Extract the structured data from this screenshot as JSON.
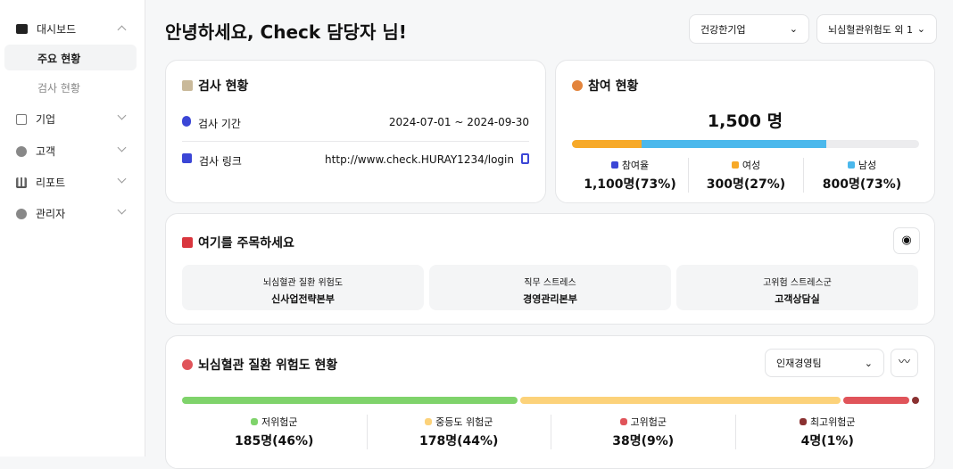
{
  "sidebar": {
    "items": [
      {
        "label": "대시보드",
        "sub": [
          "주요 현황",
          "검사 현황"
        ]
      },
      {
        "label": "기업"
      },
      {
        "label": "고객"
      },
      {
        "label": "리포트"
      },
      {
        "label": "관리자"
      }
    ]
  },
  "header": {
    "greeting": "안녕하세요, Check 담당자 님!",
    "company_select": "건강한기업",
    "risk_select": "뇌심혈관위험도 외 1"
  },
  "exam": {
    "title": "검사 현황",
    "period_label": "검사 기간",
    "period": "2024-07-01 ~ 2024-09-30",
    "link_label": "검사 링크",
    "link": "http://www.check.HURAY1234/login"
  },
  "participation": {
    "title": "참여 현황",
    "total": {
      "value": 1500,
      "label": "1,500 명"
    },
    "stats": [
      {
        "name": "참여율",
        "label": "1,100명(73%)",
        "color": "#3b46d6"
      },
      {
        "name": "여성",
        "label": "300명(27%)",
        "color": "#f7a928",
        "count": 300
      },
      {
        "name": "남성",
        "label": "800명(73%)",
        "color": "#4bb8ec",
        "count": 800
      }
    ]
  },
  "notice": {
    "title": "여기를 주목하세요",
    "items": [
      {
        "label": "뇌심혈관 질환 위험도",
        "value": "신사업전략본부"
      },
      {
        "label": "직무 스트레스",
        "value": "경영관리본부"
      },
      {
        "label": "고위험 스트레스군",
        "value": "고객상담실"
      }
    ]
  },
  "risk": {
    "title": "뇌심혈관 질환 위험도 현황",
    "select": "인재경영팀",
    "groups": [
      {
        "name": "저위험군",
        "label": "185명(46%)",
        "percent": 46,
        "color": "#7fd36b"
      },
      {
        "name": "중등도 위험군",
        "label": "178명(44%)",
        "percent": 44,
        "color": "#fcd27a"
      },
      {
        "name": "고위험군",
        "label": "38명(9%)",
        "percent": 9,
        "color": "#e0545a"
      },
      {
        "name": "최고위험군",
        "label": "4명(1%)",
        "percent": 1,
        "color": "#8a3131"
      }
    ]
  }
}
